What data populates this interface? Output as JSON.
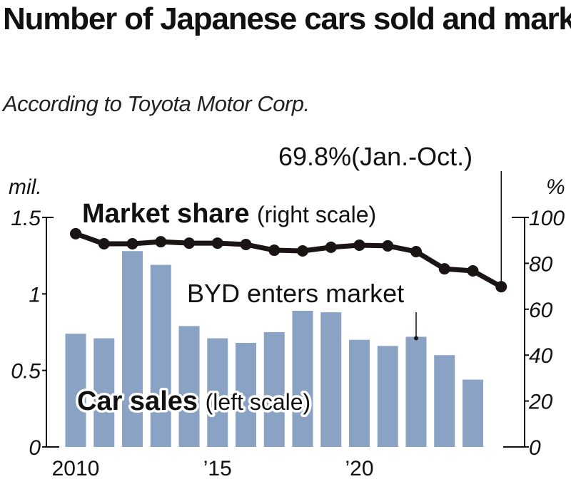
{
  "chart_data": {
    "type": "bar+line",
    "title": "Number of Japanese cars sold and market share in Thailand",
    "subtitle": "According to Toyota Motor Corp.",
    "left_axis": {
      "unit": "mil.",
      "range": [
        0,
        1.5
      ],
      "ticks": [
        "0",
        "0.5",
        "1",
        "1.5"
      ]
    },
    "right_axis": {
      "unit": "%",
      "range": [
        0,
        100
      ],
      "ticks": [
        "0",
        "20",
        "40",
        "60",
        "80",
        "100"
      ]
    },
    "x_tick_labels": [
      {
        "year": 2010,
        "label": "2010"
      },
      {
        "year": 2015,
        "label": "’15"
      },
      {
        "year": 2020,
        "label": "’20"
      }
    ],
    "bar_color": "#8aa3c4",
    "line_color": "#1a1414",
    "series": [
      {
        "name": "Car sales",
        "label_suffix": "(left scale)",
        "type": "bar",
        "axis": "left",
        "x": [
          2010,
          2011,
          2012,
          2013,
          2014,
          2015,
          2016,
          2017,
          2018,
          2019,
          2020,
          2021,
          2022,
          2023,
          2024
        ],
        "values": [
          0.74,
          0.71,
          1.28,
          1.19,
          0.79,
          0.71,
          0.68,
          0.75,
          0.89,
          0.88,
          0.7,
          0.66,
          0.72,
          0.6,
          0.44
        ]
      },
      {
        "name": "Market share",
        "label_suffix": "(right scale)",
        "type": "line",
        "axis": "right",
        "x": [
          2010,
          2011,
          2012,
          2013,
          2014,
          2015,
          2016,
          2017,
          2018,
          2019,
          2020,
          2021,
          2022,
          2023,
          2024,
          2025
        ],
        "values": [
          92.9,
          88.5,
          88.5,
          89.4,
          88.8,
          88.8,
          88.2,
          85.7,
          85.4,
          87.0,
          87.9,
          87.6,
          85.1,
          77.6,
          76.7,
          69.8
        ]
      }
    ],
    "annotations": [
      {
        "text": "BYD enters market",
        "x": 2022,
        "target": "Car sales"
      },
      {
        "text": "69.8%(Jan.-Oct.)",
        "x": 2025,
        "target": "Market share"
      }
    ]
  }
}
